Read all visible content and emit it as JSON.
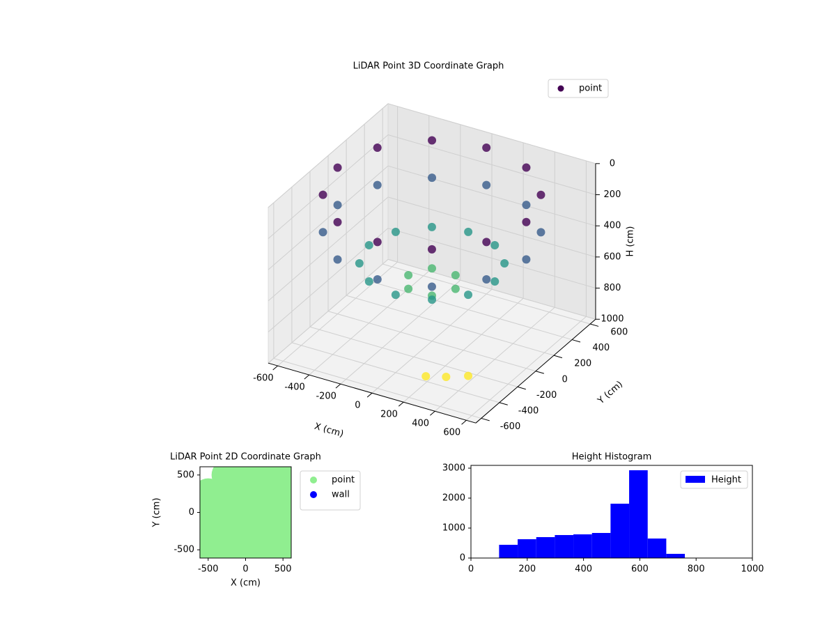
{
  "chart_data": [
    {
      "type": "scatter3d",
      "title": "LiDAR Point 3D Coordinate Graph",
      "xlabel": "X (cm)",
      "ylabel": "Y (cm)",
      "zlabel": "H (cm)",
      "xlim": [
        -660,
        660
      ],
      "ylim": [
        -660,
        660
      ],
      "zlim": [
        1000,
        0
      ],
      "xticks": [
        -600,
        -400,
        -200,
        0,
        200,
        400,
        600
      ],
      "yticks": [
        -600,
        -400,
        -200,
        0,
        200,
        400,
        600
      ],
      "zticks": [
        0,
        200,
        400,
        600,
        800,
        1000
      ],
      "colormap": "viridis",
      "grid": true,
      "legend": "upper right",
      "series": [
        {
          "name": "point",
          "x": [
            600,
            520,
            300,
            0,
            -300,
            -520,
            -600,
            -520,
            -300,
            0,
            300,
            520,
            600,
            520,
            300,
            0,
            -300,
            -520,
            -600,
            -520,
            -300,
            0,
            300,
            520,
            400,
            346,
            200,
            0,
            -200,
            -346,
            -400,
            -346,
            -200,
            0,
            200,
            346,
            150,
            75,
            -75,
            -150,
            -75,
            75,
            350,
            450,
            250
          ],
          "y": [
            0,
            300,
            520,
            600,
            520,
            300,
            0,
            -300,
            -520,
            -600,
            -520,
            -300,
            0,
            300,
            520,
            600,
            520,
            300,
            0,
            -300,
            -520,
            -600,
            -520,
            -300,
            0,
            200,
            346,
            400,
            346,
            200,
            0,
            -200,
            -346,
            -400,
            -346,
            -200,
            0,
            130,
            130,
            0,
            -130,
            -130,
            -450,
            -380,
            -500
          ],
          "h": [
            60,
            60,
            60,
            60,
            60,
            60,
            60,
            60,
            60,
            60,
            60,
            60,
            300,
            300,
            300,
            300,
            300,
            300,
            300,
            300,
            300,
            300,
            300,
            300,
            500,
            500,
            500,
            500,
            500,
            500,
            500,
            500,
            500,
            500,
            500,
            500,
            620,
            620,
            620,
            620,
            620,
            620,
            900,
            900,
            900
          ]
        }
      ]
    },
    {
      "type": "scatter",
      "title": "LiDAR Point 2D Coordinate Graph",
      "xlabel": "X (cm)",
      "ylabel": "Y (cm)",
      "xlim": [
        -610,
        610
      ],
      "ylim": [
        -610,
        610
      ],
      "xticks": [
        -500,
        0,
        500
      ],
      "yticks": [
        -500,
        0,
        500
      ],
      "legend": "outside right",
      "series": [
        {
          "name": "point",
          "color": "lightgreen",
          "x": [
            -500,
            -500,
            -500,
            -500,
            -250,
            -250,
            -250,
            -250,
            -250,
            0,
            0,
            0,
            0,
            0,
            250,
            250,
            250,
            250,
            250,
            500,
            500,
            500,
            500,
            500
          ],
          "y": [
            -500,
            -250,
            0,
            250,
            -500,
            -250,
            0,
            250,
            500,
            -500,
            -250,
            0,
            250,
            500,
            -500,
            -250,
            0,
            250,
            500,
            -500,
            -250,
            0,
            250,
            500
          ]
        },
        {
          "name": "wall",
          "color": "blue",
          "x": [],
          "y": []
        }
      ]
    },
    {
      "type": "histogram",
      "title": "Height Histogram",
      "xlim": [
        0,
        1000
      ],
      "ylim": [
        0,
        3093
      ],
      "xticks": [
        0,
        200,
        400,
        600,
        800,
        1000
      ],
      "yticks": [
        0,
        1000,
        2000,
        3000
      ],
      "legend": "upper right",
      "bins": [
        100,
        166,
        232,
        298,
        364,
        430,
        496,
        562,
        628,
        694,
        760
      ],
      "series": [
        {
          "name": "Height",
          "color": "blue",
          "values": [
            442,
            628,
            698,
            767,
            790,
            837,
            1814,
            2930,
            651,
            140
          ]
        }
      ]
    }
  ]
}
